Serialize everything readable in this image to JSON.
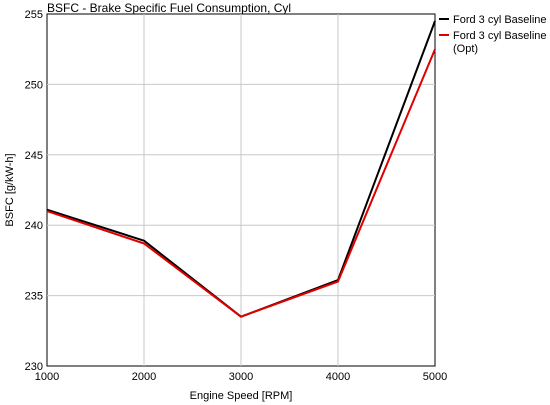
{
  "chart_data": {
    "type": "line",
    "title": "BSFC - Brake Specific Fuel Consumption, Cyl",
    "xlabel": "Engine Speed [RPM]",
    "ylabel": "BSFC [g/kW-h]",
    "xlim": [
      1000,
      5000
    ],
    "ylim": [
      230,
      255
    ],
    "x_ticks": [
      1000,
      2000,
      3000,
      4000,
      5000
    ],
    "y_ticks": [
      230,
      235,
      240,
      245,
      250,
      255
    ],
    "grid": true,
    "legend_position": "right",
    "x": [
      1000,
      2000,
      3000,
      4000,
      5000
    ],
    "series": [
      {
        "name": "Ford 3 cyl Baseline",
        "color": "#000000",
        "values": [
          241.1,
          238.9,
          233.5,
          236.1,
          254.5
        ]
      },
      {
        "name": "Ford 3 cyl Baseline",
        "name_line2": "(Opt)",
        "color": "#e00000",
        "values": [
          241.0,
          238.7,
          233.5,
          236.0,
          252.5
        ]
      }
    ]
  }
}
